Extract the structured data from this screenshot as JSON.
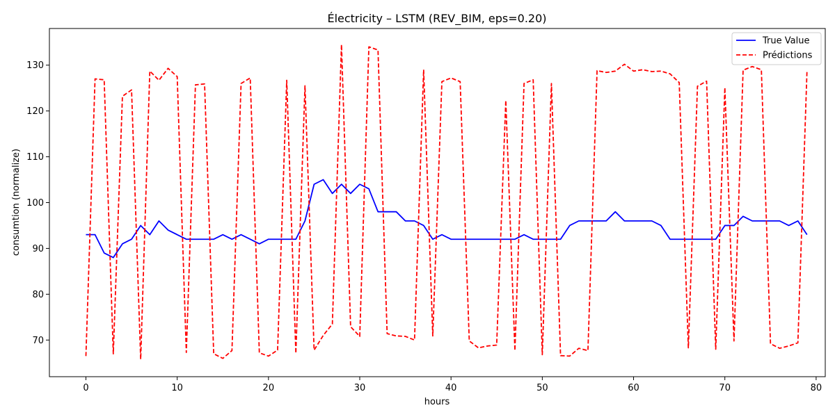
{
  "chart_data": {
    "type": "line",
    "title": "Électricity – LSTM (REV_BIM, eps=0.20)",
    "xlabel": "hours",
    "ylabel": "consumtion (normalize)",
    "xlim": [
      -4,
      81
    ],
    "ylim": [
      62,
      138
    ],
    "xticks": [
      0,
      10,
      20,
      30,
      40,
      50,
      60,
      70,
      80
    ],
    "yticks": [
      70,
      80,
      90,
      100,
      110,
      120,
      130
    ],
    "grid": false,
    "legend_position": "top-right",
    "series": [
      {
        "name": "True Value",
        "color": "#0000ff",
        "style": "solid",
        "x": [
          0,
          1,
          2,
          3,
          4,
          5,
          6,
          7,
          8,
          9,
          10,
          11,
          12,
          13,
          14,
          15,
          16,
          17,
          18,
          19,
          20,
          21,
          22,
          23,
          24,
          25,
          26,
          27,
          28,
          29,
          30,
          31,
          32,
          33,
          34,
          35,
          36,
          37,
          38,
          39,
          40,
          41,
          42,
          43,
          44,
          45,
          46,
          47,
          48,
          49,
          50,
          51,
          52,
          53,
          54,
          55,
          56,
          57,
          58,
          59,
          60,
          61,
          62,
          63,
          64,
          65,
          66,
          67,
          68,
          69,
          70,
          71,
          72,
          73,
          74,
          75,
          76,
          77,
          78,
          79
        ],
        "values": [
          93,
          93,
          89,
          88,
          91,
          92,
          95,
          93,
          96,
          94,
          93,
          92,
          92,
          92,
          92,
          93,
          92,
          93,
          92,
          91,
          92,
          92,
          92,
          92,
          96,
          104,
          105,
          102,
          104,
          102,
          104,
          103,
          98,
          98,
          98,
          96,
          96,
          95,
          92,
          93,
          92,
          92,
          92,
          92,
          92,
          92,
          92,
          92,
          93,
          92,
          92,
          92,
          92,
          95,
          96,
          96,
          96,
          96,
          98,
          96,
          96,
          96,
          96,
          95,
          92,
          92,
          92,
          92,
          92,
          92,
          95,
          95,
          97,
          96,
          96,
          96,
          96,
          95,
          96,
          93
        ]
      },
      {
        "name": "Prédictions",
        "color": "#ff0000",
        "style": "dashed",
        "x": [
          0,
          1,
          2,
          3,
          4,
          5,
          6,
          7,
          8,
          9,
          10,
          11,
          12,
          13,
          14,
          15,
          16,
          17,
          18,
          19,
          20,
          21,
          22,
          23,
          24,
          25,
          26,
          27,
          28,
          29,
          30,
          31,
          32,
          33,
          34,
          35,
          36,
          37,
          38,
          39,
          40,
          41,
          42,
          43,
          44,
          45,
          46,
          47,
          48,
          49,
          50,
          51,
          52,
          53,
          54,
          55,
          56,
          57,
          58,
          59,
          60,
          61,
          62,
          63,
          64,
          65,
          66,
          67,
          68,
          69,
          70,
          71,
          72,
          73,
          74,
          75,
          76,
          77,
          78,
          79
        ],
        "values": [
          66.5,
          127,
          126.8,
          67,
          123.2,
          124.6,
          65.8,
          128.7,
          126.7,
          129.3,
          127.5,
          67.3,
          125.7,
          125.9,
          67,
          66,
          67.7,
          126,
          127.2,
          67.2,
          66.5,
          67.8,
          126.7,
          67.1,
          125.5,
          67.8,
          71,
          73.5,
          134.5,
          72.9,
          70.8,
          134,
          133.3,
          71.4,
          70.9,
          70.8,
          70,
          129,
          70.9,
          126.4,
          127.2,
          126.4,
          69.8,
          68.3,
          68.7,
          68.9,
          122.3,
          67.7,
          126,
          126.8,
          66.8,
          126,
          66.6,
          66.5,
          68.2,
          67.7,
          128.8,
          128.4,
          128.7,
          130.2,
          128.7,
          129,
          128.6,
          128.7,
          128.1,
          126.2,
          68.3,
          125.4,
          126.5,
          68,
          125.1,
          69.8,
          128.9,
          129.7,
          129,
          69.2,
          68.2,
          68.7,
          69.4,
          128.8
        ]
      }
    ]
  }
}
